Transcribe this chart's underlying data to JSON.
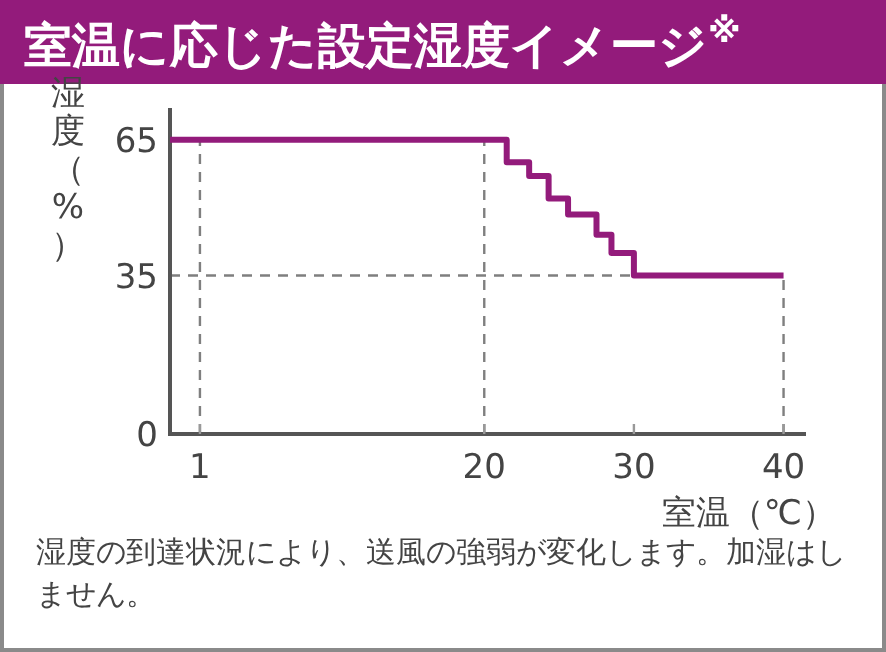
{
  "chart_data": {
    "type": "step",
    "title": "室温に応じた設定湿度イメージ$^{※}$",
    "xlabel": "室温（℃）",
    "ylabel": "湿度（%）",
    "annotations": [
      "湿度の到達状況により、送風の強弱が変化します。加湿はしません。"
    ],
    "series": [
      {
        "color": "#931b7b",
        "x": [
          -1,
          21.5,
          23,
          24.3,
          25.6,
          27.5,
          28.5,
          30,
          40
        ],
        "values": [
          65,
          60,
          57,
          52,
          48.5,
          44,
          40,
          35,
          35
        ]
      }
    ],
    "xlim": [
      -1,
      41.5
    ],
    "xticks": [
      1,
      20,
      30,
      40
    ],
    "ylim": [
      0,
      72
    ],
    "yticks": [
      0,
      35,
      65
    ],
    "ref_lines": [
      {
        "axis": "x",
        "value": 1,
        "color": "#7f7f7f",
        "line_style": "dashed"
      },
      {
        "axis": "x",
        "value": 20,
        "color": "#7f7f7f",
        "line_style": "dashed"
      },
      {
        "axis": "x",
        "value": 40,
        "color": "#7f7f7f",
        "line_style": "dashed"
      },
      {
        "axis": "y",
        "value": 35,
        "color": "#7f7f7f",
        "line_style": "dashed"
      }
    ],
    "grid": false
  }
}
